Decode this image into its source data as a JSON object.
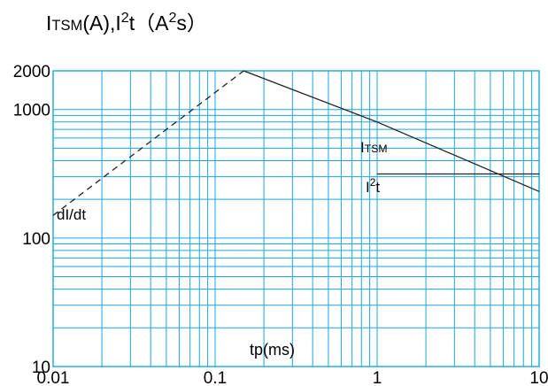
{
  "chart_data": {
    "type": "line",
    "title": {
      "p1": "I",
      "p1_sub": "TSM",
      "p2": "(A),I",
      "p2_sup": "2",
      "p3": "t（A",
      "p3_sup": "2",
      "p4": "s）"
    },
    "xlabel": "tp(ms)",
    "ylabel": "",
    "xscale": "log",
    "yscale": "log",
    "xlim": [
      0.01,
      10
    ],
    "ylim": [
      10,
      2000
    ],
    "grid": true,
    "x_ticks": [
      0.01,
      0.1,
      1,
      10
    ],
    "x_tick_labels": [
      "0.01",
      "0.1",
      "1",
      "10"
    ],
    "y_ticks": [
      10,
      100,
      1000,
      2000
    ],
    "y_tick_labels": [
      "10",
      "100",
      "1000",
      "2000"
    ],
    "series": [
      {
        "name_main": "dI/dt",
        "style": "dashed",
        "x": [
          0.01,
          0.15
        ],
        "y": [
          150,
          2000
        ]
      },
      {
        "name_main": "I",
        "name_sub": "TSM",
        "style": "solid",
        "x": [
          0.15,
          1,
          10
        ],
        "y": [
          2000,
          800,
          230
        ]
      },
      {
        "name_main": "I",
        "name_sup": "2",
        "name_tail": "t",
        "style": "solid",
        "x": [
          1,
          10
        ],
        "y": [
          315,
          315
        ]
      }
    ]
  }
}
